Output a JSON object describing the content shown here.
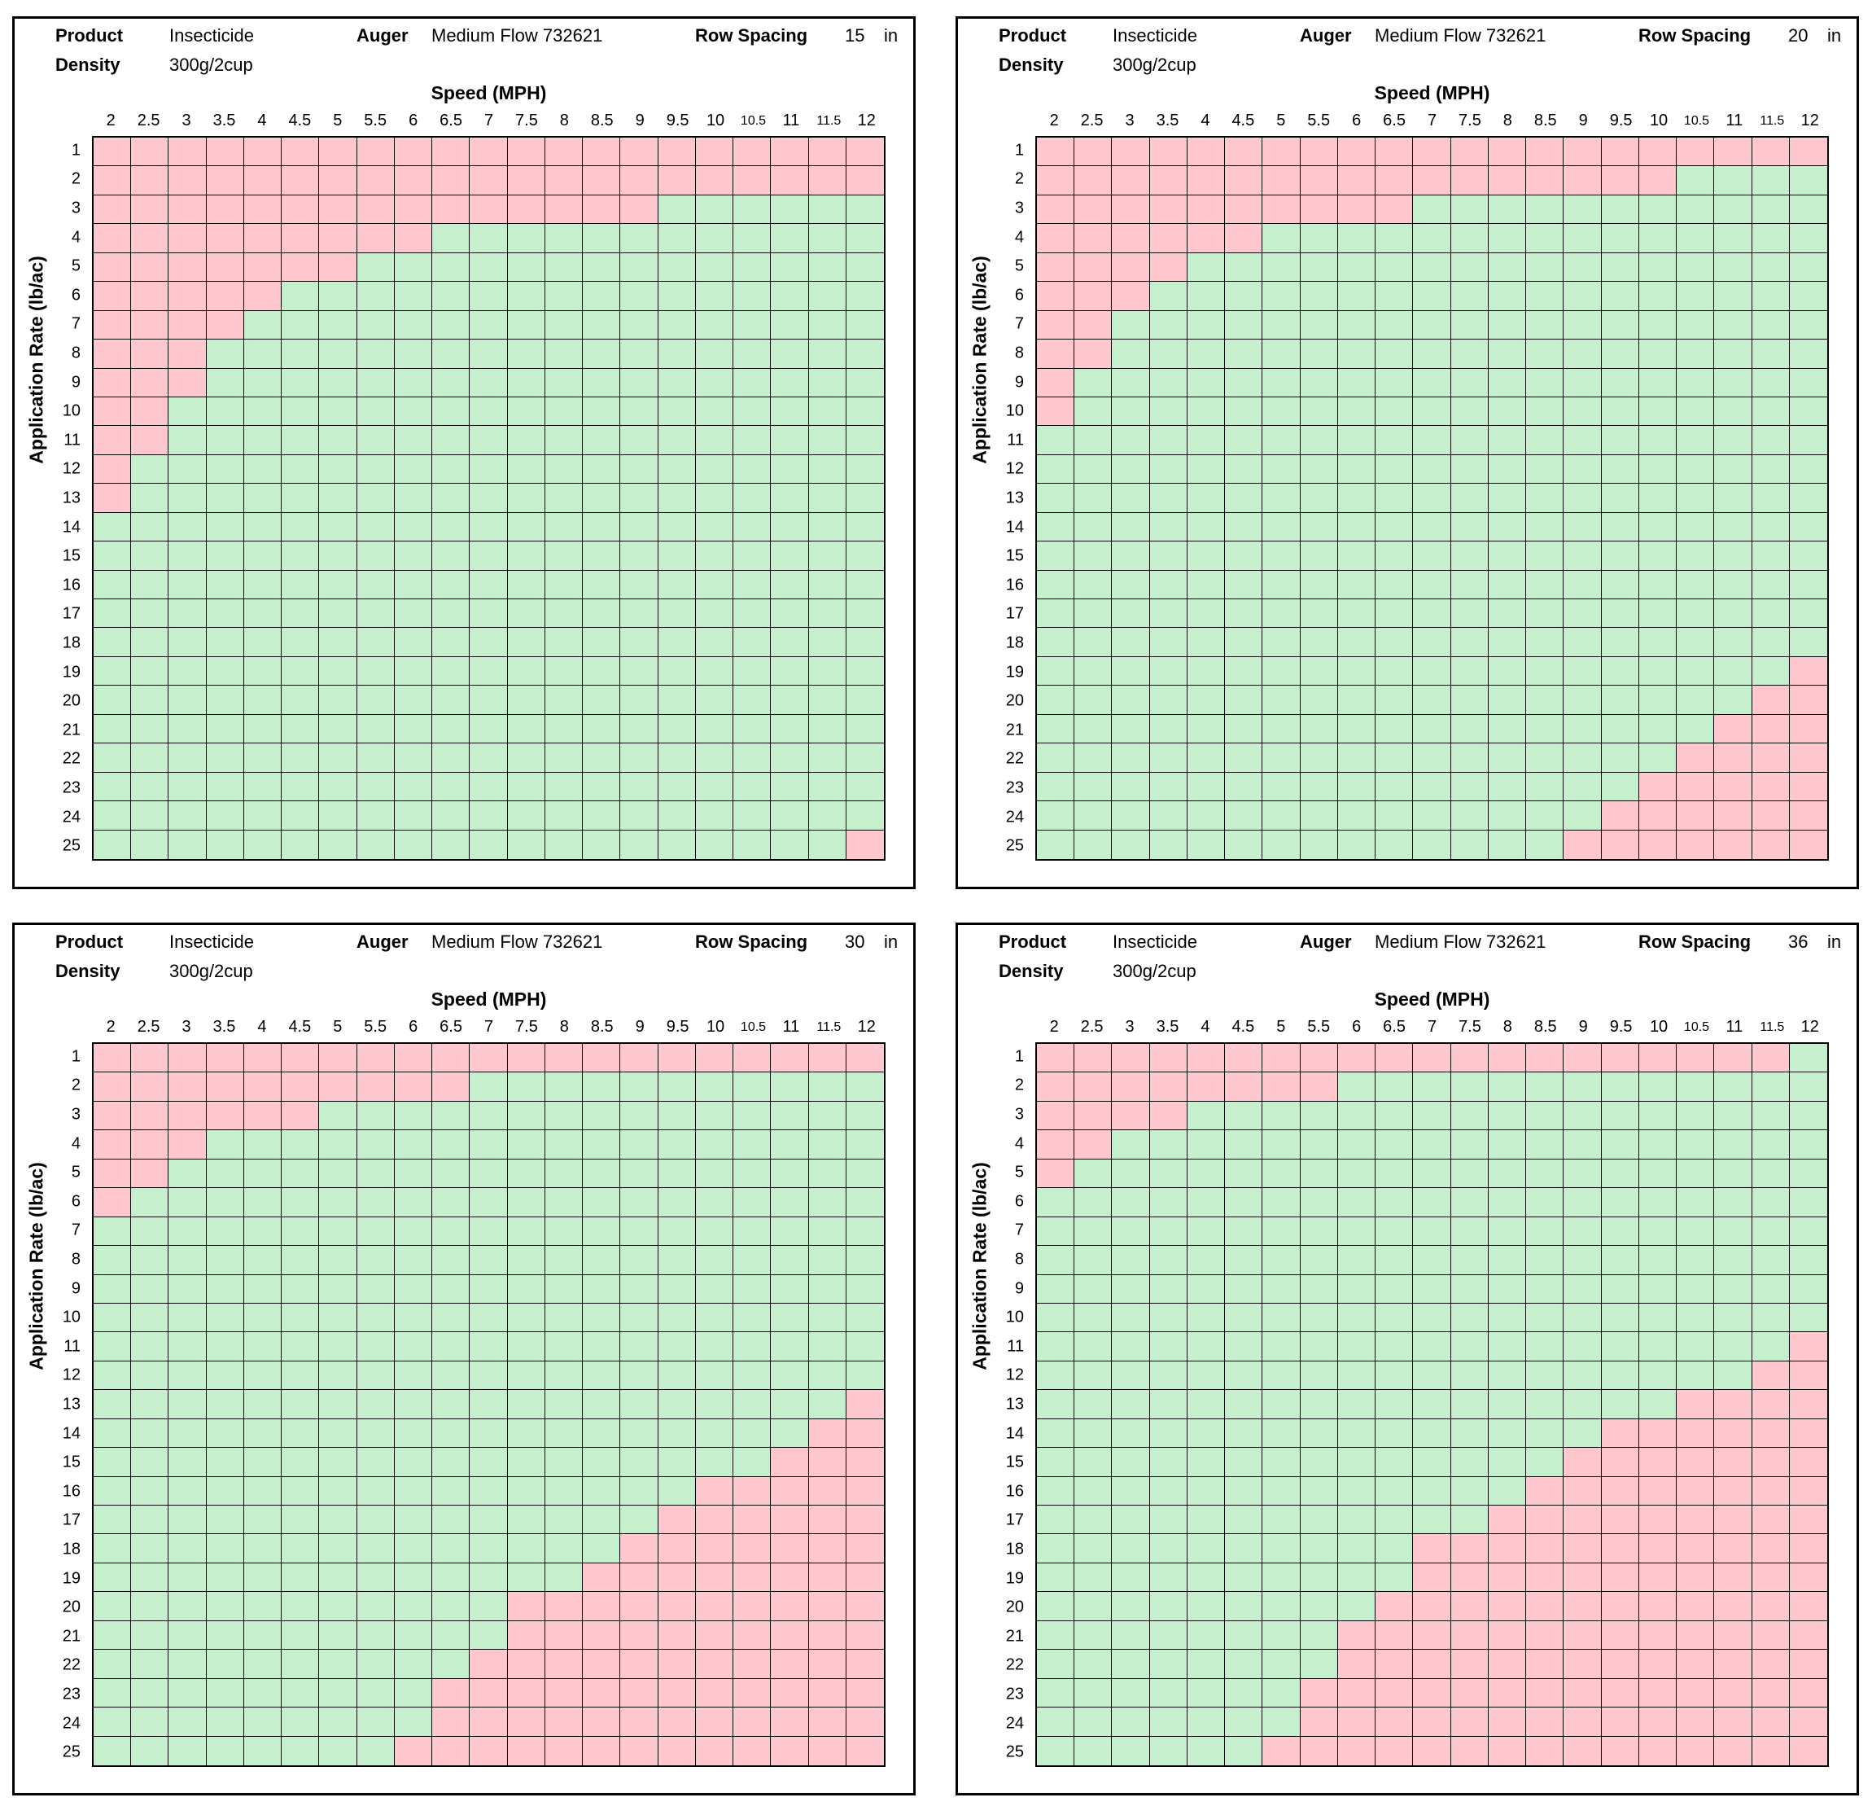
{
  "chart_data": {
    "type": "heatmap",
    "xlabel": "Speed (MPH)",
    "ylabel": "Application Rate (lb/ac)",
    "x": [
      "2",
      "2.5",
      "3",
      "3.5",
      "4",
      "4.5",
      "5",
      "5.5",
      "6",
      "6.5",
      "7",
      "7.5",
      "8",
      "8.5",
      "9",
      "9.5",
      "10",
      "10.5",
      "11",
      "11.5",
      "12"
    ],
    "y": [
      "1",
      "2",
      "3",
      "4",
      "5",
      "6",
      "7",
      "8",
      "9",
      "10",
      "11",
      "12",
      "13",
      "14",
      "15",
      "16",
      "17",
      "18",
      "19",
      "20",
      "21",
      "22",
      "23",
      "24",
      "25"
    ],
    "colors": {
      "ok": "#c6efce",
      "out_of_range": "#ffc7ce"
    },
    "panels": [
      {
        "product_label": "Product",
        "product": "Insecticide",
        "density_label": "Density",
        "density": "300g/2cup",
        "auger_label": "Auger",
        "auger": "Medium Flow 732621",
        "row_spacing_label": "Row Spacing",
        "row_spacing": "15",
        "unit": "in",
        "min_ok_rate_by_speed": [
          14,
          12,
          10,
          8,
          7,
          6,
          6,
          5,
          5,
          4,
          4,
          4,
          4,
          4,
          4,
          3,
          3,
          3,
          3,
          3,
          3
        ],
        "max_ok_rate_by_speed": [
          25,
          25,
          25,
          25,
          25,
          25,
          25,
          25,
          25,
          25,
          25,
          25,
          25,
          25,
          25,
          25,
          25,
          25,
          25,
          25,
          24
        ]
      },
      {
        "product_label": "Product",
        "product": "Insecticide",
        "density_label": "Density",
        "density": "300g/2cup",
        "auger_label": "Auger",
        "auger": "Medium Flow 732621",
        "row_spacing_label": "Row Spacing",
        "row_spacing": "20",
        "unit": "in",
        "min_ok_rate_by_speed": [
          11,
          9,
          7,
          6,
          5,
          5,
          4,
          4,
          4,
          4,
          3,
          3,
          3,
          3,
          3,
          3,
          3,
          2,
          2,
          2,
          2
        ],
        "max_ok_rate_by_speed": [
          25,
          25,
          25,
          25,
          25,
          25,
          25,
          25,
          25,
          25,
          25,
          25,
          25,
          25,
          24,
          23,
          22,
          21,
          20,
          19,
          18
        ]
      },
      {
        "product_label": "Product",
        "product": "Insecticide",
        "density_label": "Density",
        "density": "300g/2cup",
        "auger_label": "Auger",
        "auger": "Medium Flow 732621",
        "row_spacing_label": "Row Spacing",
        "row_spacing": "30",
        "unit": "in",
        "min_ok_rate_by_speed": [
          7,
          6,
          5,
          4,
          4,
          4,
          3,
          3,
          3,
          3,
          2,
          2,
          2,
          2,
          2,
          2,
          2,
          2,
          2,
          2,
          2
        ],
        "max_ok_rate_by_speed": [
          25,
          25,
          25,
          25,
          25,
          25,
          25,
          25,
          24,
          22,
          21,
          19,
          19,
          18,
          17,
          16,
          15,
          15,
          14,
          13,
          12
        ]
      },
      {
        "product_label": "Product",
        "product": "Insecticide",
        "density_label": "Density",
        "density": "300g/2cup",
        "auger_label": "Auger",
        "auger": "Medium Flow 732621",
        "row_spacing_label": "Row Spacing",
        "row_spacing": "36",
        "unit": "in",
        "min_ok_rate_by_speed": [
          6,
          5,
          4,
          4,
          3,
          3,
          3,
          3,
          2,
          2,
          2,
          2,
          2,
          2,
          2,
          2,
          2,
          2,
          2,
          2,
          1
        ],
        "max_ok_rate_by_speed": [
          25,
          25,
          25,
          25,
          25,
          25,
          24,
          22,
          20,
          19,
          17,
          17,
          16,
          15,
          14,
          13,
          13,
          12,
          12,
          11,
          10
        ]
      }
    ]
  }
}
